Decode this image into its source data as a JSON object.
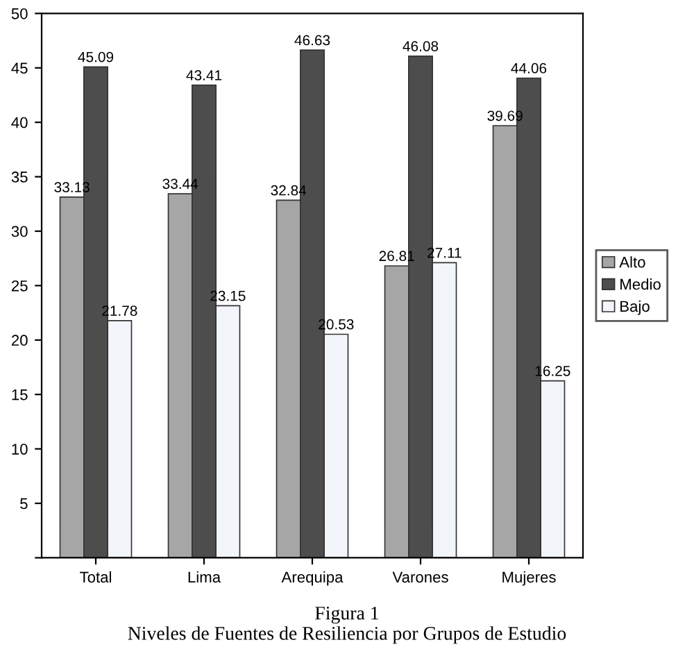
{
  "chart_data": {
    "type": "bar",
    "categories": [
      "Total",
      "Lima",
      "Arequipa",
      "Varones",
      "Mujeres"
    ],
    "series": [
      {
        "name": "Alto",
        "color": "#a6a6a6",
        "values": [
          33.13,
          33.44,
          32.84,
          26.81,
          39.69
        ]
      },
      {
        "name": "Medio",
        "color": "#4d4d4d",
        "values": [
          45.09,
          43.41,
          46.63,
          46.08,
          44.06
        ]
      },
      {
        "name": "Bajo",
        "color": "#f2f5fa",
        "values": [
          21.78,
          23.15,
          20.53,
          27.11,
          16.25
        ]
      }
    ],
    "ylim": [
      0,
      50
    ],
    "yticks": [
      {
        "value": 0,
        "label": null
      },
      5,
      10,
      15,
      20,
      25,
      30,
      35,
      40,
      45,
      50
    ],
    "data_labels": true,
    "legend": "right",
    "grid": false,
    "annotations": [
      "Figura 1",
      "Niveles de Fuentes de Resiliencia por Grupos de Estudio"
    ]
  }
}
